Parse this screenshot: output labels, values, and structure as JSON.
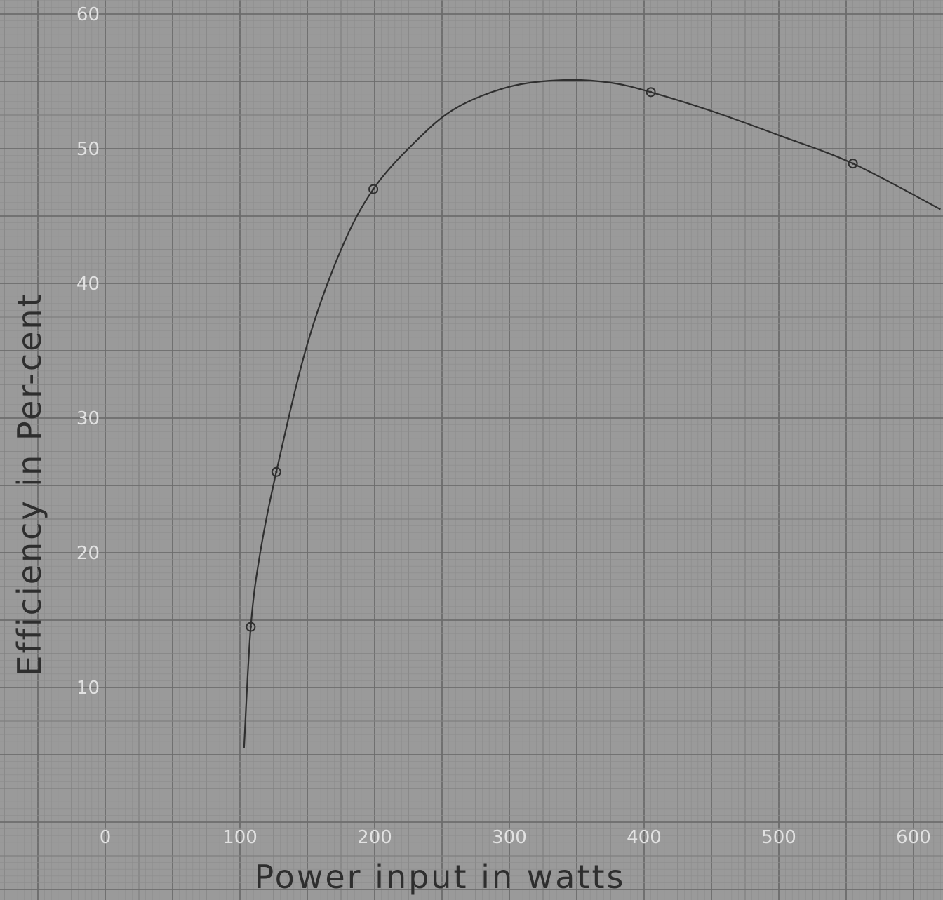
{
  "chart_data": {
    "type": "line",
    "xlabel": "Power input in watts",
    "ylabel": "Efficiency in Per-cent",
    "xlim": [
      0,
      620
    ],
    "ylim": [
      0,
      60
    ],
    "xticks": [
      "0",
      "100",
      "200",
      "300",
      "400",
      "500",
      "600"
    ],
    "yticks": [
      "10",
      "20",
      "30",
      "40",
      "50",
      "60"
    ],
    "grid": true,
    "series": [
      {
        "points": [
          {
            "x": 108,
            "y": 14.5
          },
          {
            "x": 127,
            "y": 26
          },
          {
            "x": 199,
            "y": 47
          },
          {
            "x": 405,
            "y": 54.2
          },
          {
            "x": 555,
            "y": 48.9
          }
        ],
        "curve": [
          {
            "x": 103,
            "y": 5.5
          },
          {
            "x": 108,
            "y": 14.5
          },
          {
            "x": 115,
            "y": 20
          },
          {
            "x": 127,
            "y": 26
          },
          {
            "x": 150,
            "y": 35.5
          },
          {
            "x": 175,
            "y": 42.5
          },
          {
            "x": 199,
            "y": 47
          },
          {
            "x": 230,
            "y": 50.5
          },
          {
            "x": 260,
            "y": 53
          },
          {
            "x": 300,
            "y": 54.6
          },
          {
            "x": 340,
            "y": 55.1
          },
          {
            "x": 375,
            "y": 54.9
          },
          {
            "x": 405,
            "y": 54.2
          },
          {
            "x": 450,
            "y": 52.8
          },
          {
            "x": 500,
            "y": 51
          },
          {
            "x": 555,
            "y": 48.9
          },
          {
            "x": 620,
            "y": 45.5
          }
        ]
      }
    ]
  }
}
